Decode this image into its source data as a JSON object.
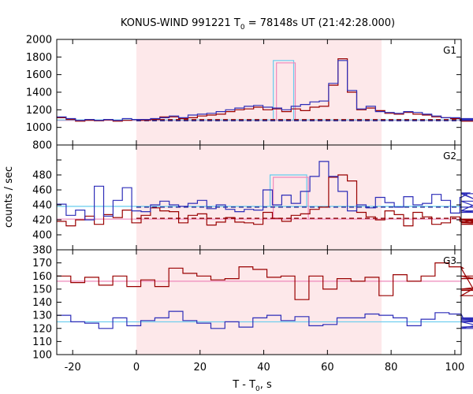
{
  "chart_data": {
    "type": "line",
    "title_prefix": "KONUS-WIND 991221 T",
    "title_subscript": "0",
    "title_suffix": " = 78148s UT (21:42:28.000)",
    "xlabel_prefix": "T - T",
    "xlabel_subscript": "0",
    "xlabel_suffix": ", s",
    "ylabel": "counts / sec",
    "xlim": [
      -25,
      102
    ],
    "x_ticks": [
      -20,
      0,
      20,
      40,
      60,
      80,
      100
    ],
    "x_tick_labels": [
      "-20",
      "0",
      "20",
      "40",
      "60",
      "80",
      "100"
    ],
    "highlight_interval": [
      0,
      77
    ],
    "colors": {
      "highlight": "#fde8ea",
      "series_red": "#990000",
      "series_blue": "#2d2db8",
      "fit_red": "#ee88bb",
      "fit_blue": "#66ccee",
      "burst_red": "#ee88bb",
      "burst_blue": "#66ccee",
      "bg_red": "#8b0000",
      "bg_blue": "#1a1a8c"
    },
    "panels": [
      {
        "label": "G1",
        "ylim": [
          800,
          2000
        ],
        "y_ticks": [
          800,
          1000,
          1200,
          1400,
          1600,
          1800,
          2000
        ],
        "y_tick_labels": [
          "800",
          "1000",
          "1200",
          "1400",
          "1600",
          "1800",
          "2000"
        ],
        "bin_start": -25,
        "bin_width": 2.944,
        "red": [
          1110,
          1090,
          1070,
          1080,
          1075,
          1085,
          1070,
          1080,
          1090,
          1080,
          1090,
          1120,
          1120,
          1100,
          1110,
          1130,
          1140,
          1150,
          1180,
          1200,
          1210,
          1230,
          1200,
          1210,
          1180,
          1210,
          1190,
          1230,
          1240,
          1480,
          1780,
          1400,
          1200,
          1220,
          1190,
          1160,
          1150,
          1170,
          1150,
          1140,
          1120,
          1110,
          1100,
          1090,
          1080,
          1080,
          1070,
          1080,
          1090,
          1075
        ],
        "blue": [
          1120,
          1100,
          1080,
          1090,
          1080,
          1090,
          1080,
          1100,
          1090,
          1090,
          1100,
          1110,
          1130,
          1110,
          1140,
          1150,
          1160,
          1180,
          1200,
          1220,
          1240,
          1250,
          1230,
          1220,
          1200,
          1240,
          1260,
          1290,
          1300,
          1500,
          1760,
          1420,
          1210,
          1240,
          1180,
          1170,
          1160,
          1180,
          1170,
          1150,
          1130,
          1110,
          1110,
          1100,
          1090,
          1095,
          1080,
          1085,
          1100,
          1090
        ],
        "burst_x": [
          43,
          49.4
        ],
        "burst_level": 1760,
        "fit_red": 1080,
        "fit_blue": 1085
      },
      {
        "label": "G2",
        "ylim": [
          380,
          520
        ],
        "y_ticks": [
          380,
          400,
          420,
          440,
          460,
          480,
          500
        ],
        "y_tick_labels": [
          "380",
          "400",
          "420",
          "440",
          "460",
          "480",
          "500"
        ],
        "bin_start": -25,
        "bin_width": 2.944,
        "red": [
          418,
          412,
          420,
          425,
          414,
          427,
          423,
          433,
          416,
          426,
          436,
          432,
          431,
          416,
          426,
          428,
          413,
          417,
          423,
          417,
          416,
          414,
          430,
          422,
          418,
          426,
          428,
          434,
          437,
          477,
          480,
          472,
          430,
          424,
          420,
          432,
          427,
          412,
          430,
          424,
          414,
          416,
          424,
          418,
          417,
          421,
          414,
          416,
          420,
          414
        ],
        "blue": [
          441,
          426,
          433,
          420,
          465,
          425,
          446,
          463,
          432,
          431,
          440,
          445,
          440,
          438,
          442,
          446,
          435,
          440,
          434,
          431,
          434,
          433,
          460,
          440,
          453,
          442,
          458,
          478,
          498,
          478,
          458,
          432,
          440,
          436,
          450,
          443,
          437,
          451,
          440,
          442,
          454,
          446,
          429,
          450,
          456,
          445,
          432,
          455,
          430,
          437
        ],
        "burst_x": [
          42,
          53.5
        ],
        "burst_level": 480,
        "fit_red": 421,
        "fit_blue": 438
      },
      {
        "label": "G3",
        "ylim": [
          100,
          180
        ],
        "y_ticks": [
          100,
          110,
          120,
          130,
          140,
          150,
          160,
          170,
          180
        ],
        "y_tick_labels": [
          "100",
          "110",
          "120",
          "130",
          "140",
          "150",
          "160",
          "170",
          "180"
        ],
        "bin_start": -25,
        "bin_width": 4.4,
        "red": [
          160,
          155,
          159,
          153,
          160,
          152,
          157,
          152,
          166,
          162,
          160,
          157,
          158,
          167,
          165,
          159,
          160,
          142,
          160,
          150,
          158,
          156,
          159,
          145,
          161,
          156,
          160,
          170,
          167,
          166,
          145,
          158,
          160,
          160,
          149,
          149,
          150,
          160,
          160
        ],
        "blue": [
          130,
          125,
          124,
          120,
          128,
          122,
          126,
          128,
          133,
          126,
          124,
          120,
          125,
          121,
          128,
          130,
          126,
          129,
          122,
          123,
          128,
          128,
          131,
          130,
          128,
          122,
          127,
          132,
          131,
          128,
          125,
          120,
          127,
          125,
          127,
          128,
          128,
          121,
          126
        ],
        "fit_red": 156,
        "fit_blue": 125
      }
    ]
  }
}
